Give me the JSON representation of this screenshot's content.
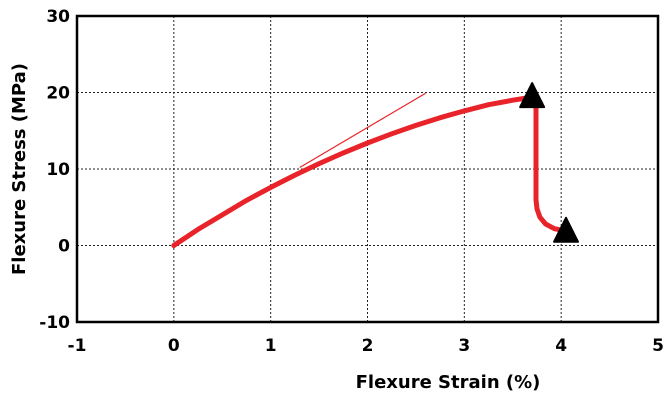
{
  "chart_data": {
    "type": "line",
    "title": "",
    "xlabel": "Flexure Strain (%)",
    "ylabel": "Flexure Stress (MPa)",
    "xlim": [
      -1,
      5
    ],
    "ylim": [
      -10,
      30
    ],
    "x_ticks": [
      "-1",
      "0",
      "1",
      "2",
      "3",
      "4",
      "5"
    ],
    "y_ticks": [
      "30",
      "20",
      "10",
      "0",
      "-10"
    ],
    "grid": true,
    "legend": "none",
    "series": [
      {
        "color": "#e8242a",
        "points": [
          [
            0,
            0
          ],
          [
            0.25,
            2.1
          ],
          [
            0.5,
            4.0
          ],
          [
            0.75,
            5.9
          ],
          [
            1.0,
            7.6
          ],
          [
            1.25,
            9.2
          ],
          [
            1.5,
            10.7
          ],
          [
            1.75,
            12.1
          ],
          [
            2.0,
            13.4
          ],
          [
            2.25,
            14.6
          ],
          [
            2.5,
            15.7
          ],
          [
            2.75,
            16.7
          ],
          [
            3.0,
            17.6
          ],
          [
            3.25,
            18.4
          ],
          [
            3.5,
            19.0
          ],
          [
            3.7,
            19.4
          ],
          [
            3.74,
            19.5
          ]
        ]
      },
      {
        "color": "#e8242a",
        "points": [
          [
            3.74,
            19.5
          ],
          [
            3.74,
            16.0
          ],
          [
            3.74,
            10.0
          ],
          [
            3.74,
            6.0
          ],
          [
            3.75,
            4.8
          ],
          [
            3.78,
            3.7
          ],
          [
            3.84,
            2.8
          ],
          [
            3.93,
            2.2
          ],
          [
            4.05,
            1.9
          ],
          [
            4.1,
            1.8
          ]
        ]
      }
    ],
    "tangent_line": {
      "color": "#e8242a",
      "points": [
        [
          1.3,
          10.2
        ],
        [
          2.6,
          19.9
        ]
      ]
    },
    "markers": [
      {
        "shape": "triangle",
        "color": "#000000",
        "x": 3.7,
        "y": 19.5
      },
      {
        "shape": "triangle",
        "color": "#000000",
        "x": 4.05,
        "y": 1.9
      }
    ]
  }
}
